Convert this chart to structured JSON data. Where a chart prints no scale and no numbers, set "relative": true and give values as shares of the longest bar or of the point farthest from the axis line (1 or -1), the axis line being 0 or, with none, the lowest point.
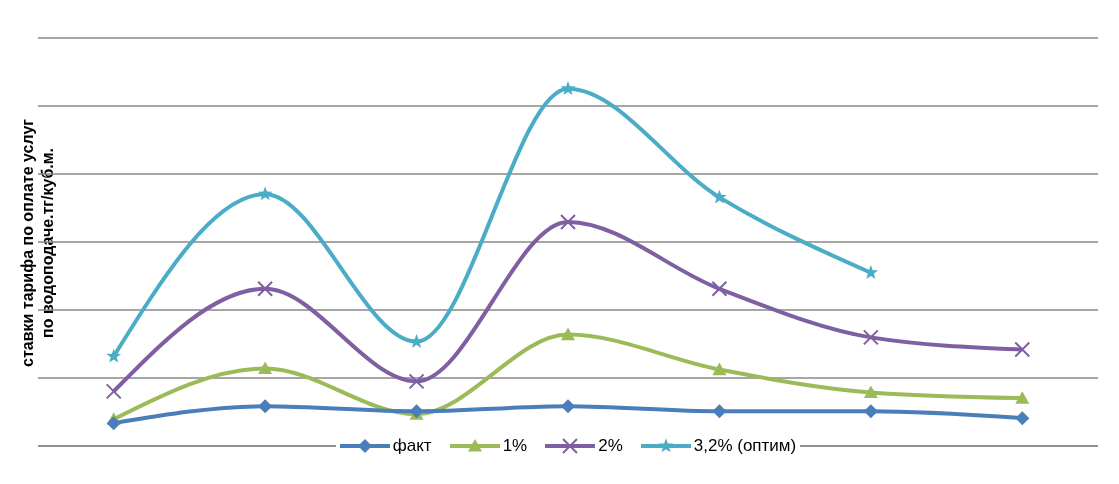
{
  "chart_data": {
    "type": "line",
    "ylabel": "ставки тарифа по оплате услуг по водоподаче.тг/куб.м.",
    "relative": true,
    "grid": "y",
    "legend": "bottom",
    "line_style": "solid",
    "categories": [
      null,
      null,
      null,
      null,
      null,
      null,
      null
    ],
    "series": [
      {
        "name": "факт",
        "color": "#4a7ebb",
        "marker": "diamond",
        "values": [
          0.064,
          0.111,
          0.097,
          0.111,
          0.097,
          0.097,
          0.078
        ]
      },
      {
        "name": "1%",
        "color": "#9bbb59",
        "marker": "triangle",
        "values": [
          0.075,
          0.217,
          0.089,
          0.312,
          0.214,
          0.15,
          0.134
        ]
      },
      {
        "name": "2%",
        "color": "#7e5fa1",
        "marker": "cross",
        "values": [
          0.153,
          0.44,
          0.181,
          0.627,
          0.44,
          0.304,
          0.27
        ]
      },
      {
        "name": "3,2% (оптим)",
        "color": "#4bacc6",
        "marker": "star",
        "values": [
          0.251,
          0.705,
          0.292,
          1,
          0.696,
          0.485,
          null
        ]
      }
    ]
  }
}
